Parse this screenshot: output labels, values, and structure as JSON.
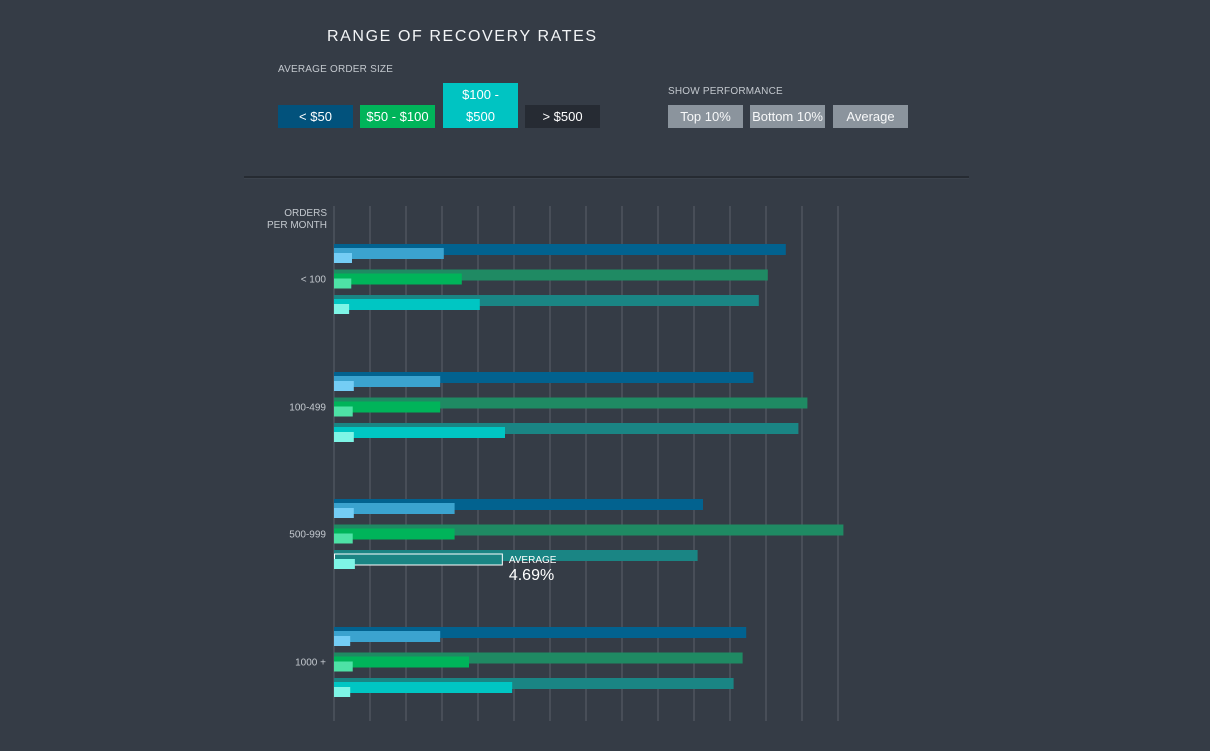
{
  "title": "RANGE OF RECOVERY RATES",
  "order_size": {
    "label": "AVERAGE ORDER SIZE",
    "buttons": [
      {
        "label": "< $50",
        "color": "#02527c"
      },
      {
        "label": "$50 - $100",
        "color": "#00b45a"
      },
      {
        "label": "$100 - $500",
        "color": "#00c4c2"
      },
      {
        "label": "> $500",
        "color": "#262b33"
      }
    ]
  },
  "performance": {
    "label": "SHOW PERFORMANCE",
    "buttons": [
      {
        "label": "Top 10%"
      },
      {
        "label": "Bottom 10%"
      },
      {
        "label": "Average"
      }
    ]
  },
  "chart_data": {
    "type": "bar",
    "orientation": "horizontal",
    "ylabel": "ORDERS PER MONTH",
    "ylabel_lines": [
      "ORDERS",
      "PER MONTH"
    ],
    "categories": [
      "< 100",
      "100-499",
      "500-999",
      "1000 +"
    ],
    "grid": true,
    "xlim": [
      0,
      14
    ],
    "colors": {
      "top": [
        "#02628f",
        "#1f8a63",
        "#1a8584"
      ],
      "average": [
        "#3ba3cf",
        "#00b45a",
        "#00c6c3"
      ],
      "bottom": [
        "#74cdf5",
        "#4ee2a6",
        "#7ef5e6"
      ]
    },
    "series": [
      {
        "name": "< $50",
        "top": [
          12.55,
          11.65,
          10.25,
          11.45
        ],
        "average": [
          3.05,
          2.95,
          3.35,
          2.95
        ],
        "bottom": [
          0.5,
          0.55,
          0.55,
          0.45
        ]
      },
      {
        "name": "$50 - $100",
        "top": [
          12.05,
          13.15,
          14.15,
          11.35
        ],
        "average": [
          3.55,
          2.95,
          3.35,
          3.75
        ],
        "bottom": [
          0.48,
          0.52,
          0.52,
          0.52
        ]
      },
      {
        "name": "$100 - $500",
        "top": [
          11.8,
          12.9,
          10.1,
          11.1
        ],
        "average": [
          4.05,
          4.75,
          4.69,
          4.95
        ],
        "bottom": [
          0.42,
          0.55,
          0.58,
          0.45
        ]
      }
    ],
    "annotation": {
      "label": "AVERAGE",
      "value": "4.69%"
    }
  }
}
